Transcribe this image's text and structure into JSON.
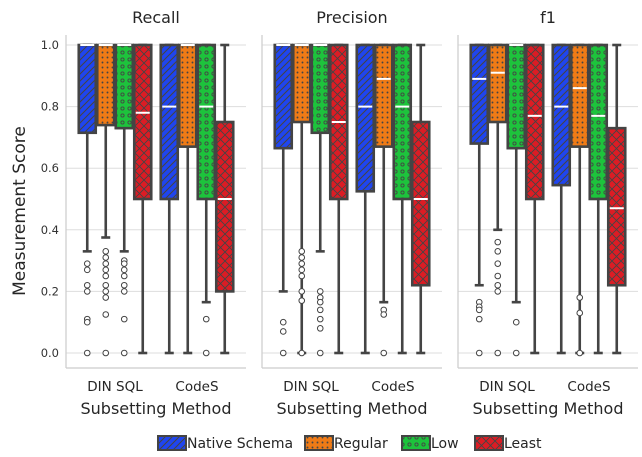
{
  "chart_data": [
    {
      "type": "box",
      "title": "Recall",
      "xlabel": "Subsetting Method",
      "ylabel": "Measurement Score",
      "ylim": [
        0,
        1.0
      ],
      "yticks": [
        "0.0",
        "0.2",
        "0.4",
        "0.6",
        "0.8",
        "1.0"
      ],
      "categories": [
        "DIN SQL",
        "CodeS"
      ],
      "series": [
        {
          "name": "Native Schema",
          "boxes": [
            {
              "whislo": 0.33,
              "q1": 0.715,
              "med": 1.0,
              "q3": 1.0,
              "whishi": 1.0,
              "fliers": [
                0.29,
                0.27,
                0.22,
                0.2,
                0.11,
                0.1,
                0.0
              ]
            },
            {
              "whislo": 0.0,
              "q1": 0.5,
              "med": 0.8,
              "q3": 1.0,
              "whishi": 1.0,
              "fliers": []
            }
          ]
        },
        {
          "name": "Regular",
          "boxes": [
            {
              "whislo": 0.375,
              "q1": 0.74,
              "med": 1.0,
              "q3": 1.0,
              "whishi": 1.0,
              "fliers": [
                0.33,
                0.31,
                0.29,
                0.27,
                0.25,
                0.22,
                0.2,
                0.18,
                0.125,
                0.0
              ]
            },
            {
              "whislo": 0.0,
              "q1": 0.67,
              "med": 1.0,
              "q3": 1.0,
              "whishi": 1.0,
              "fliers": []
            }
          ]
        },
        {
          "name": "Low",
          "boxes": [
            {
              "whislo": 0.33,
              "q1": 0.73,
              "med": 1.0,
              "q3": 1.0,
              "whishi": 1.0,
              "fliers": [
                0.3,
                0.29,
                0.27,
                0.25,
                0.22,
                0.2,
                0.11,
                0.0
              ]
            },
            {
              "whislo": 0.165,
              "q1": 0.5,
              "med": 0.8,
              "q3": 1.0,
              "whishi": 1.0,
              "fliers": [
                0.11,
                0.0
              ]
            }
          ]
        },
        {
          "name": "Least",
          "boxes": [
            {
              "whislo": 0.0,
              "q1": 0.5,
              "med": 0.78,
              "q3": 1.0,
              "whishi": 1.0,
              "fliers": []
            },
            {
              "whislo": 0.0,
              "q1": 0.2,
              "med": 0.5,
              "q3": 0.75,
              "whishi": 1.0,
              "fliers": []
            }
          ]
        }
      ]
    },
    {
      "type": "box",
      "title": "Precision",
      "xlabel": "Subsetting Method",
      "ylabel": "",
      "ylim": [
        0,
        1.0
      ],
      "categories": [
        "DIN SQL",
        "CodeS"
      ],
      "series": [
        {
          "name": "Native Schema",
          "boxes": [
            {
              "whislo": 0.2,
              "q1": 0.665,
              "med": 1.0,
              "q3": 1.0,
              "whishi": 1.0,
              "fliers": [
                0.1,
                0.07,
                0.0
              ]
            },
            {
              "whislo": 0.0,
              "q1": 0.525,
              "med": 0.8,
              "q3": 1.0,
              "whishi": 1.0,
              "fliers": []
            }
          ]
        },
        {
          "name": "Regular",
          "boxes": [
            {
              "whislo": 0.0,
              "q1": 0.75,
              "med": 1.0,
              "q3": 1.0,
              "whishi": 1.0,
              "fliers": [
                0.33,
                0.31,
                0.29,
                0.27,
                0.25,
                0.2,
                0.17,
                0.0
              ]
            },
            {
              "whislo": 0.165,
              "q1": 0.67,
              "med": 0.89,
              "q3": 1.0,
              "whishi": 1.0,
              "fliers": [
                0.14,
                0.125,
                0.0
              ]
            }
          ]
        },
        {
          "name": "Low",
          "boxes": [
            {
              "whislo": 0.33,
              "q1": 0.715,
              "med": 1.0,
              "q3": 1.0,
              "whishi": 1.0,
              "fliers": [
                0.2,
                0.18,
                0.165,
                0.14,
                0.11,
                0.08,
                0.0
              ]
            },
            {
              "whislo": 0.0,
              "q1": 0.5,
              "med": 0.8,
              "q3": 1.0,
              "whishi": 1.0,
              "fliers": []
            }
          ]
        },
        {
          "name": "Least",
          "boxes": [
            {
              "whislo": 0.0,
              "q1": 0.5,
              "med": 0.75,
              "q3": 1.0,
              "whishi": 1.0,
              "fliers": []
            },
            {
              "whislo": 0.0,
              "q1": 0.22,
              "med": 0.5,
              "q3": 0.75,
              "whishi": 1.0,
              "fliers": []
            }
          ]
        }
      ]
    },
    {
      "type": "box",
      "title": "f1",
      "xlabel": "Subsetting Method",
      "ylabel": "",
      "ylim": [
        0,
        1.0
      ],
      "categories": [
        "DIN SQL",
        "CodeS"
      ],
      "series": [
        {
          "name": "Native Schema",
          "boxes": [
            {
              "whislo": 0.22,
              "q1": 0.68,
              "med": 0.89,
              "q3": 1.0,
              "whishi": 1.0,
              "fliers": [
                0.165,
                0.15,
                0.14,
                0.11,
                0.0
              ]
            },
            {
              "whislo": 0.0,
              "q1": 0.545,
              "med": 0.8,
              "q3": 1.0,
              "whishi": 1.0,
              "fliers": []
            }
          ]
        },
        {
          "name": "Regular",
          "boxes": [
            {
              "whislo": 0.4,
              "q1": 0.75,
              "med": 0.91,
              "q3": 1.0,
              "whishi": 1.0,
              "fliers": [
                0.36,
                0.33,
                0.29,
                0.25,
                0.22,
                0.2,
                0.0
              ]
            },
            {
              "whislo": 0.0,
              "q1": 0.67,
              "med": 0.86,
              "q3": 1.0,
              "whishi": 1.0,
              "fliers": [
                0.18,
                0.13,
                0.0
              ]
            }
          ]
        },
        {
          "name": "Low",
          "boxes": [
            {
              "whislo": 0.165,
              "q1": 0.665,
              "med": 1.0,
              "q3": 1.0,
              "whishi": 1.0,
              "fliers": [
                0.1,
                0.0
              ]
            },
            {
              "whislo": 0.0,
              "q1": 0.5,
              "med": 0.77,
              "q3": 1.0,
              "whishi": 1.0,
              "fliers": []
            }
          ]
        },
        {
          "name": "Least",
          "boxes": [
            {
              "whislo": 0.0,
              "q1": 0.5,
              "med": 0.77,
              "q3": 1.0,
              "whishi": 1.0,
              "fliers": []
            },
            {
              "whislo": 0.0,
              "q1": 0.22,
              "med": 0.47,
              "q3": 0.73,
              "whishi": 1.0,
              "fliers": []
            }
          ]
        }
      ]
    }
  ],
  "legend": {
    "position": "bottom",
    "items": [
      {
        "name": "Native Schema",
        "color": "#1f45f0",
        "hatch": "diagonal"
      },
      {
        "name": "Regular",
        "color": "#ef7b16",
        "hatch": "dots-dense"
      },
      {
        "name": "Low",
        "color": "#1dc33c",
        "hatch": "circles"
      },
      {
        "name": "Least",
        "color": "#dc1c24",
        "hatch": "crosshatch"
      }
    ]
  },
  "grid": "horizontal",
  "colors": {
    "outline": "#444444",
    "grid": "#dddddd",
    "spine": "#cccccc",
    "median": "#ffffff"
  }
}
